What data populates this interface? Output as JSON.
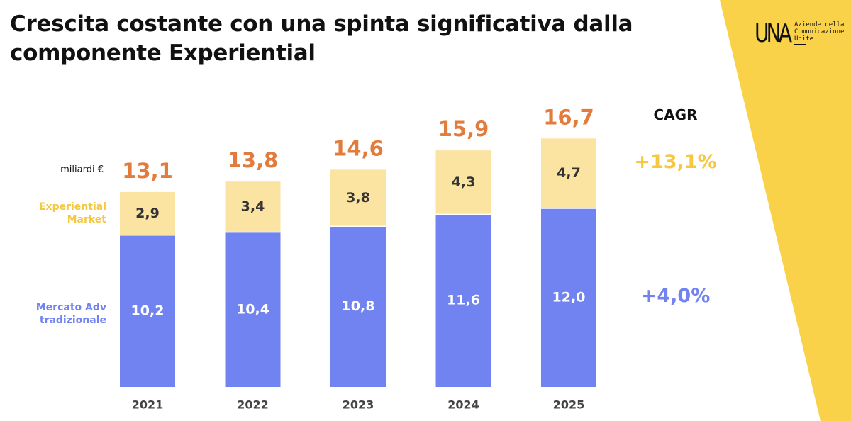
{
  "title": {
    "line1": "Crescita costante con una spinta significativa dalla",
    "line2": "componente Experiential"
  },
  "logo": {
    "mark": "UNA",
    "text_line1": "Aziende della",
    "text_line2": "Comunicazione",
    "text_line3": "Unite"
  },
  "unit_label": "miliardi €",
  "legend": {
    "experiential_line1": "Experiential",
    "experiential_line2": "Market",
    "traditional_line1": "Mercato Adv",
    "traditional_line2": "tradizionale"
  },
  "cagr": {
    "title": "CAGR",
    "experiential": "+13,1%",
    "traditional": "+4,0%"
  },
  "colors": {
    "experiential": "#fbe3a2",
    "traditional": "#7083f0",
    "total_label": "#e27b3c",
    "accent_yellow": "#f9d24a",
    "legend_yellow": "#f5c842"
  },
  "chart_data": {
    "type": "bar",
    "stacked": true,
    "categories": [
      "2021",
      "2022",
      "2023",
      "2024",
      "2025"
    ],
    "series": [
      {
        "name": "Mercato Adv tradizionale",
        "values": [
          10.2,
          10.4,
          10.8,
          11.6,
          12.0
        ],
        "labels": [
          "10,2",
          "10,4",
          "10,8",
          "11,6",
          "12,0"
        ]
      },
      {
        "name": "Experiential Market",
        "values": [
          2.9,
          3.4,
          3.8,
          4.3,
          4.7
        ],
        "labels": [
          "2,9",
          "3,4",
          "3,8",
          "4,3",
          "4,7"
        ]
      }
    ],
    "totals": [
      13.1,
      13.8,
      14.6,
      15.9,
      16.7
    ],
    "total_labels": [
      "13,1",
      "13,8",
      "14,6",
      "15,9",
      "16,7"
    ],
    "ylabel": "miliardi €",
    "grid": false,
    "legend_position": "left"
  }
}
